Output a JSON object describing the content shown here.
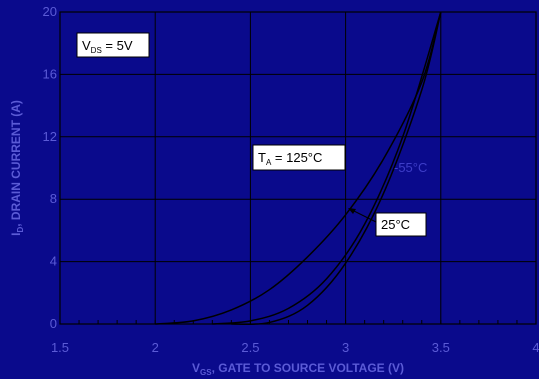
{
  "chart_data": {
    "type": "line",
    "xlim": [
      1.5,
      4.0
    ],
    "ylim": [
      0,
      20
    ],
    "x_ticks": [
      "1.5",
      "2",
      "2.5",
      "3",
      "3.5",
      "4"
    ],
    "y_ticks": [
      "0",
      "4",
      "8",
      "12",
      "16",
      "20"
    ],
    "xlabel_main": "V",
    "xlabel_sub": "GS",
    "xlabel_rest": ", GATE TO SOURCE VOLTAGE (V)",
    "ylabel_main": "I",
    "ylabel_sub": "D",
    "ylabel_rest": ", DRAIN CURRENT (A)",
    "grid": true,
    "series": [
      {
        "name": "T_A = 125°C",
        "x": [
          2.0,
          2.2,
          2.4,
          2.6,
          2.8,
          3.0,
          3.2,
          3.4,
          3.5
        ],
        "y": [
          0,
          0.2,
          0.9,
          2.2,
          4.3,
          7.0,
          10.6,
          15.5,
          20.0
        ]
      },
      {
        "name": "-55°C",
        "x": [
          2.3,
          2.5,
          2.7,
          2.9,
          3.1,
          3.3,
          3.5
        ],
        "y": [
          0,
          0.2,
          1.0,
          2.9,
          6.4,
          12.0,
          20.0
        ]
      },
      {
        "name": "25°C",
        "x": [
          2.4,
          2.6,
          2.8,
          3.0,
          3.2,
          3.4,
          3.5
        ],
        "y": [
          0,
          0.1,
          1.2,
          3.9,
          8.4,
          15.0,
          20.0
        ]
      }
    ],
    "annotations": {
      "vds": {
        "main": "V",
        "sub": "DS",
        "rest": " = 5V"
      },
      "t125": {
        "main": "T",
        "sub": "A",
        "rest": " = 125°C"
      },
      "tm55": "-55°C",
      "t25": "25°C"
    },
    "colors": {
      "background": "#0a0a8c",
      "curve": "#000000",
      "grid": "#000000",
      "axis_text": "#5b5bd6",
      "label_box": "#ffffff"
    }
  }
}
